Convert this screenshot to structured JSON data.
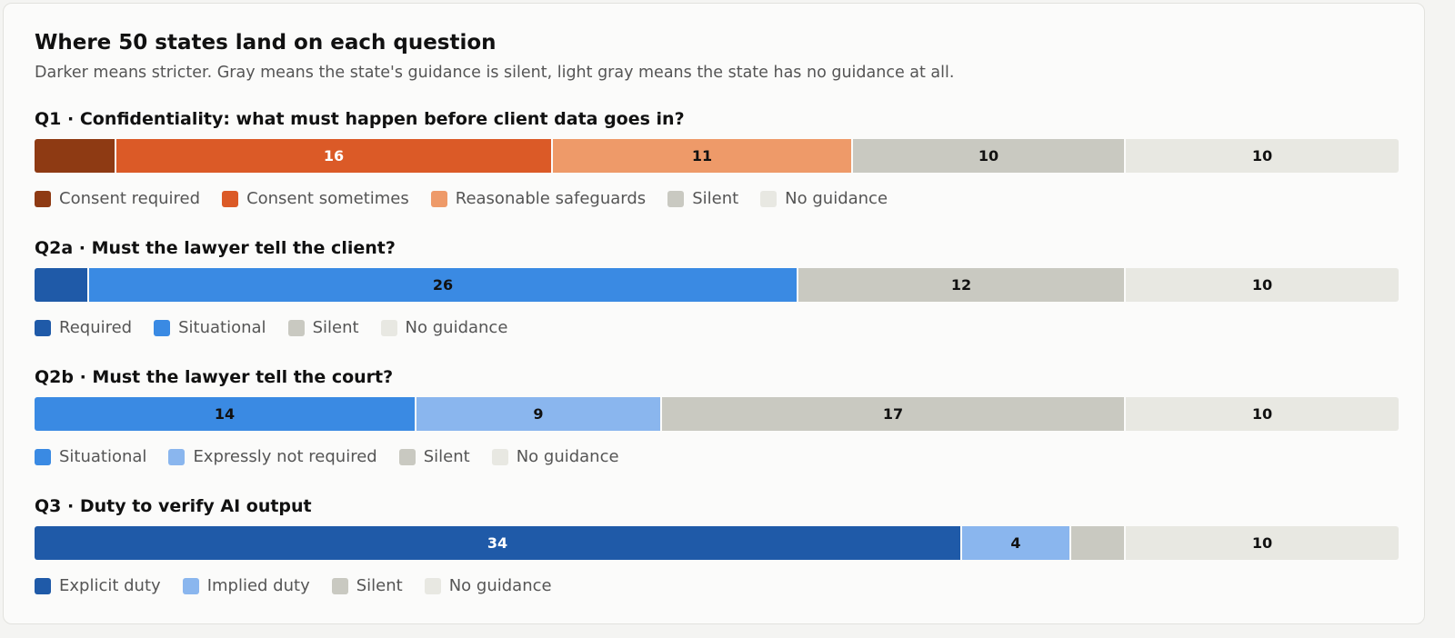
{
  "header": {
    "title": "Where 50 states land on each question",
    "subtitle": "Darker means stricter. Gray means the state's guidance is silent, light gray means the state has no guidance at all."
  },
  "chart_data": [
    {
      "type": "bar",
      "orientation": "horizontal-stacked",
      "title": "Q1 · Confidentiality: what must happen before client data goes in?",
      "total": 50,
      "series": [
        {
          "name": "Consent required",
          "value": 3,
          "label": "",
          "color": "#8e3a13",
          "text_color": "#ffffff"
        },
        {
          "name": "Consent sometimes",
          "value": 16,
          "label": "16",
          "color": "#db5a27",
          "text_color": "#ffffff"
        },
        {
          "name": "Reasonable safeguards",
          "value": 11,
          "label": "11",
          "color": "#ee9a69",
          "text_color": "#111111"
        },
        {
          "name": "Silent",
          "value": 10,
          "label": "10",
          "color": "#c9c9c1",
          "text_color": "#111111"
        },
        {
          "name": "No guidance",
          "value": 10,
          "label": "10",
          "color": "#e8e8e2",
          "text_color": "#111111"
        }
      ]
    },
    {
      "type": "bar",
      "orientation": "horizontal-stacked",
      "title": "Q2a · Must the lawyer tell the client?",
      "total": 50,
      "series": [
        {
          "name": "Required",
          "value": 2,
          "label": "",
          "color": "#1f5aa8",
          "text_color": "#ffffff"
        },
        {
          "name": "Situational",
          "value": 26,
          "label": "26",
          "color": "#3a8ae3",
          "text_color": "#111111"
        },
        {
          "name": "Silent",
          "value": 12,
          "label": "12",
          "color": "#c9c9c1",
          "text_color": "#111111"
        },
        {
          "name": "No guidance",
          "value": 10,
          "label": "10",
          "color": "#e8e8e2",
          "text_color": "#111111"
        }
      ]
    },
    {
      "type": "bar",
      "orientation": "horizontal-stacked",
      "title": "Q2b · Must the lawyer tell the court?",
      "total": 50,
      "series": [
        {
          "name": "Situational",
          "value": 14,
          "label": "14",
          "color": "#3a8ae3",
          "text_color": "#111111"
        },
        {
          "name": "Expressly not required",
          "value": 9,
          "label": "9",
          "color": "#8ab6ee",
          "text_color": "#111111"
        },
        {
          "name": "Silent",
          "value": 17,
          "label": "17",
          "color": "#c9c9c1",
          "text_color": "#111111"
        },
        {
          "name": "No guidance",
          "value": 10,
          "label": "10",
          "color": "#e8e8e2",
          "text_color": "#111111"
        }
      ]
    },
    {
      "type": "bar",
      "orientation": "horizontal-stacked",
      "title": "Q3 · Duty to verify AI output",
      "total": 50,
      "series": [
        {
          "name": "Explicit duty",
          "value": 34,
          "label": "34",
          "color": "#1f5aa8",
          "text_color": "#ffffff"
        },
        {
          "name": "Implied duty",
          "value": 4,
          "label": "4",
          "color": "#8ab6ee",
          "text_color": "#111111"
        },
        {
          "name": "Silent",
          "value": 2,
          "label": "",
          "color": "#c9c9c1",
          "text_color": "#111111"
        },
        {
          "name": "No guidance",
          "value": 10,
          "label": "10",
          "color": "#e8e8e2",
          "text_color": "#111111"
        }
      ]
    }
  ]
}
